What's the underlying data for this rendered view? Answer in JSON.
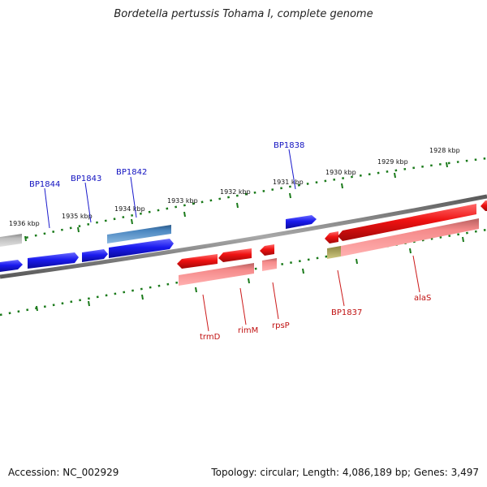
{
  "title": "Bordetella pertussis Tohama I, complete genome",
  "accession_text": "Accession: NC_002929",
  "stats_text": "Topology: circular; Length: 4,086,189 bp; Genes: 3,497",
  "colors": {
    "forward_gene": "#1a1aee",
    "reverse_gene": "#ee1111",
    "reverse_gene_light": "#f58a8a",
    "feature_grey": "#9a9a9a",
    "feature_steel": "#4a86c0",
    "feature_olive": "#b8b060",
    "tick": "#1a7a1a",
    "backbone": "#7a7a7a"
  },
  "scale_labels": [
    "1936 kbp",
    "1935 kbp",
    "1934 kbp",
    "1933 kbp",
    "1932 kbp",
    "1931 kbp",
    "1930 kbp",
    "1929 kbp",
    "1928 kbp"
  ],
  "gene_labels_top": [
    "BP1844",
    "BP1843",
    "BP1842",
    "BP1838"
  ],
  "gene_labels_bottom": [
    "trmD",
    "rimM",
    "rpsP",
    "BP1837",
    "alaS"
  ]
}
